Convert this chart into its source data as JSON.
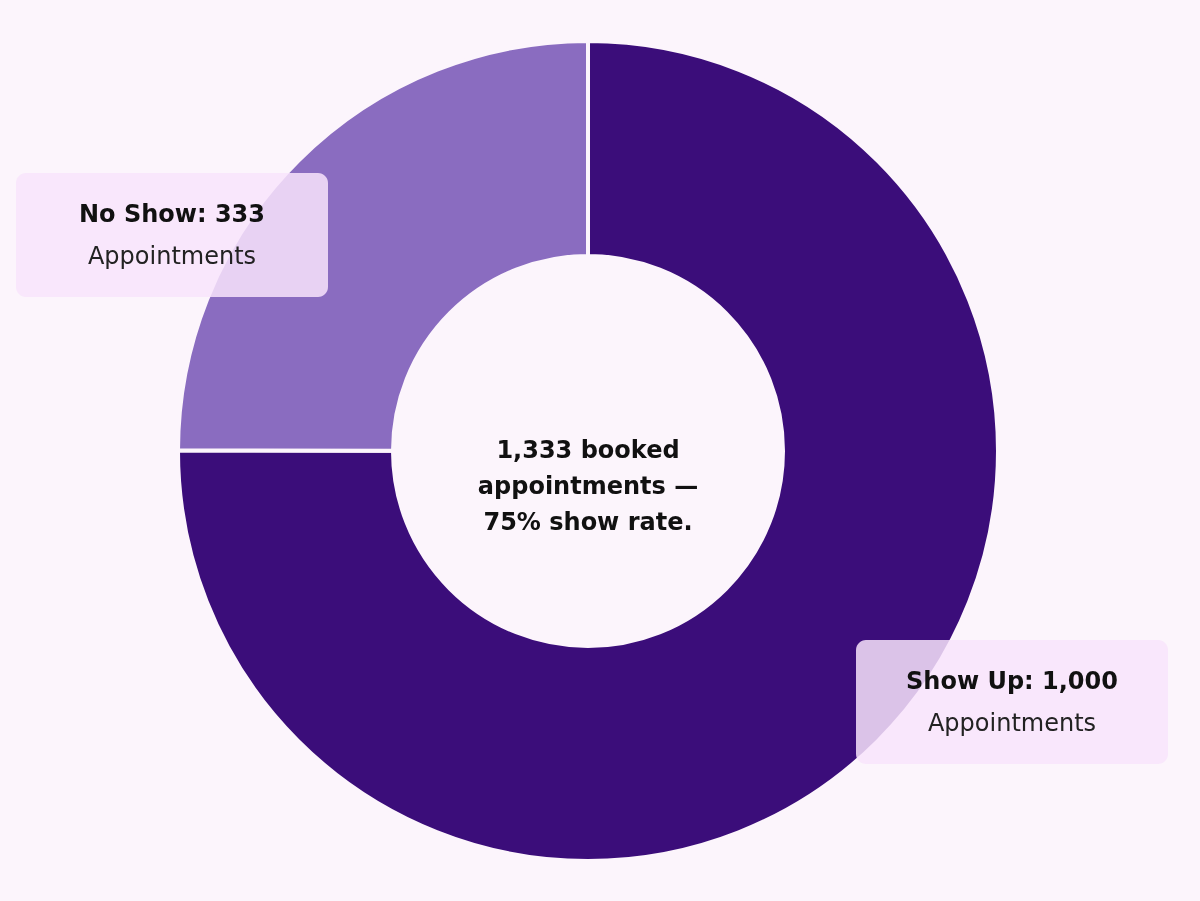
{
  "chart_data": {
    "type": "donut",
    "categories": [
      "Show Up",
      "No Show"
    ],
    "values": [
      1000,
      333
    ],
    "colors": [
      "#3b0d7a",
      "#8a6cc0"
    ],
    "value_labels": [
      "1,000",
      "333"
    ],
    "annotations": [
      "1,333 booked appointments — 75% show rate.",
      "Appointments",
      "Appointments"
    ]
  }
}
